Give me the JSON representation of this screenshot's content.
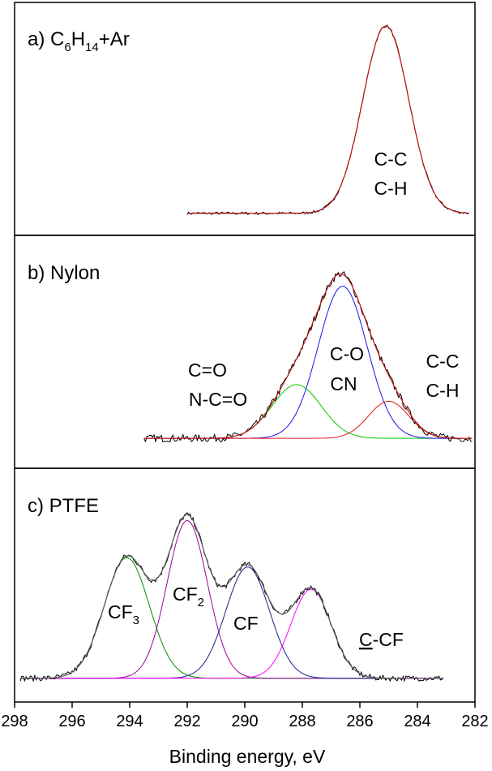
{
  "chart_data": {
    "type": "line",
    "xlabel": "Binding energy, eV",
    "xlim": [
      298,
      282
    ],
    "x_ticks": [
      "298",
      "296",
      "294",
      "292",
      "290",
      "288",
      "286",
      "284",
      "282"
    ],
    "y_ticks_shown": false,
    "panels": [
      {
        "id": "a",
        "title": {
          "pre": "a) C",
          "sub1": "6",
          "mid": "H",
          "sub2": "14",
          "post": "+Ar"
        },
        "range": [
          292,
          282.2
        ],
        "ylim": [
          0,
          1.05
        ],
        "baseline": 0.03,
        "envelope_color": "#c81414",
        "noise": 0.007,
        "components": [
          {
            "name": "C-C / C-H",
            "center": 285.1,
            "amplitude": 0.97,
            "sigma": 0.8,
            "color": "#c81414"
          }
        ],
        "labels": [
          {
            "lines": [
              "C-C",
              "C-H"
            ],
            "at_eV": 285.4
          }
        ]
      },
      {
        "id": "b",
        "title": {
          "pre": "b) Nylon"
        },
        "range": [
          293.5,
          282.1
        ],
        "ylim": [
          0,
          1.05
        ],
        "baseline": 0.03,
        "envelope_color": "#c81414",
        "noise": 0.02,
        "components": [
          {
            "name": "C=O / N-C=O",
            "center": 288.2,
            "amplitude": 0.29,
            "sigma": 0.85,
            "color": "#00c800"
          },
          {
            "name": "C-O / CN",
            "center": 286.6,
            "amplitude": 0.82,
            "sigma": 0.85,
            "color": "#1414e6"
          },
          {
            "name": "C-C / C-H",
            "center": 285.0,
            "amplitude": 0.2,
            "sigma": 0.7,
            "color": "#e61414"
          }
        ],
        "labels": [
          {
            "lines": [
              "C=O",
              "N-C=O"
            ],
            "at_eV": 290.2
          },
          {
            "lines": [
              "C-O",
              "CN"
            ],
            "at_eV": 286.9
          },
          {
            "lines": [
              "C-C",
              "C-H"
            ],
            "at_eV": 283.5
          }
        ]
      },
      {
        "id": "c",
        "title": {
          "pre": "c) PTFE"
        },
        "range": [
          297.8,
          283.1
        ],
        "ylim": [
          0,
          1.05
        ],
        "baseline": 0.01,
        "envelope_color": "#646464",
        "noise": 0.015,
        "components": [
          {
            "name": "CF3",
            "center": 294.1,
            "amplitude": 0.65,
            "sigma": 0.78,
            "color": "#008c00"
          },
          {
            "name": "CF2",
            "center": 292.0,
            "amplitude": 0.85,
            "sigma": 0.7,
            "color": "#a000a0"
          },
          {
            "name": "CF",
            "center": 289.9,
            "amplitude": 0.6,
            "sigma": 0.76,
            "color": "#1e1e96"
          },
          {
            "name": "C-CF",
            "center": 287.7,
            "amplitude": 0.48,
            "sigma": 0.7,
            "color": "#ff00ff"
          }
        ],
        "labels": [
          {
            "base": "CF",
            "sub": "3",
            "at_eV": 294.5
          },
          {
            "base": "CF",
            "sub": "2",
            "at_eV": 292.2
          },
          {
            "base": "CF",
            "sub": "",
            "at_eV": 289.8
          },
          {
            "base": "C",
            "underline": true,
            "rest": "-CF",
            "at_eV": 286.4
          }
        ]
      }
    ]
  }
}
